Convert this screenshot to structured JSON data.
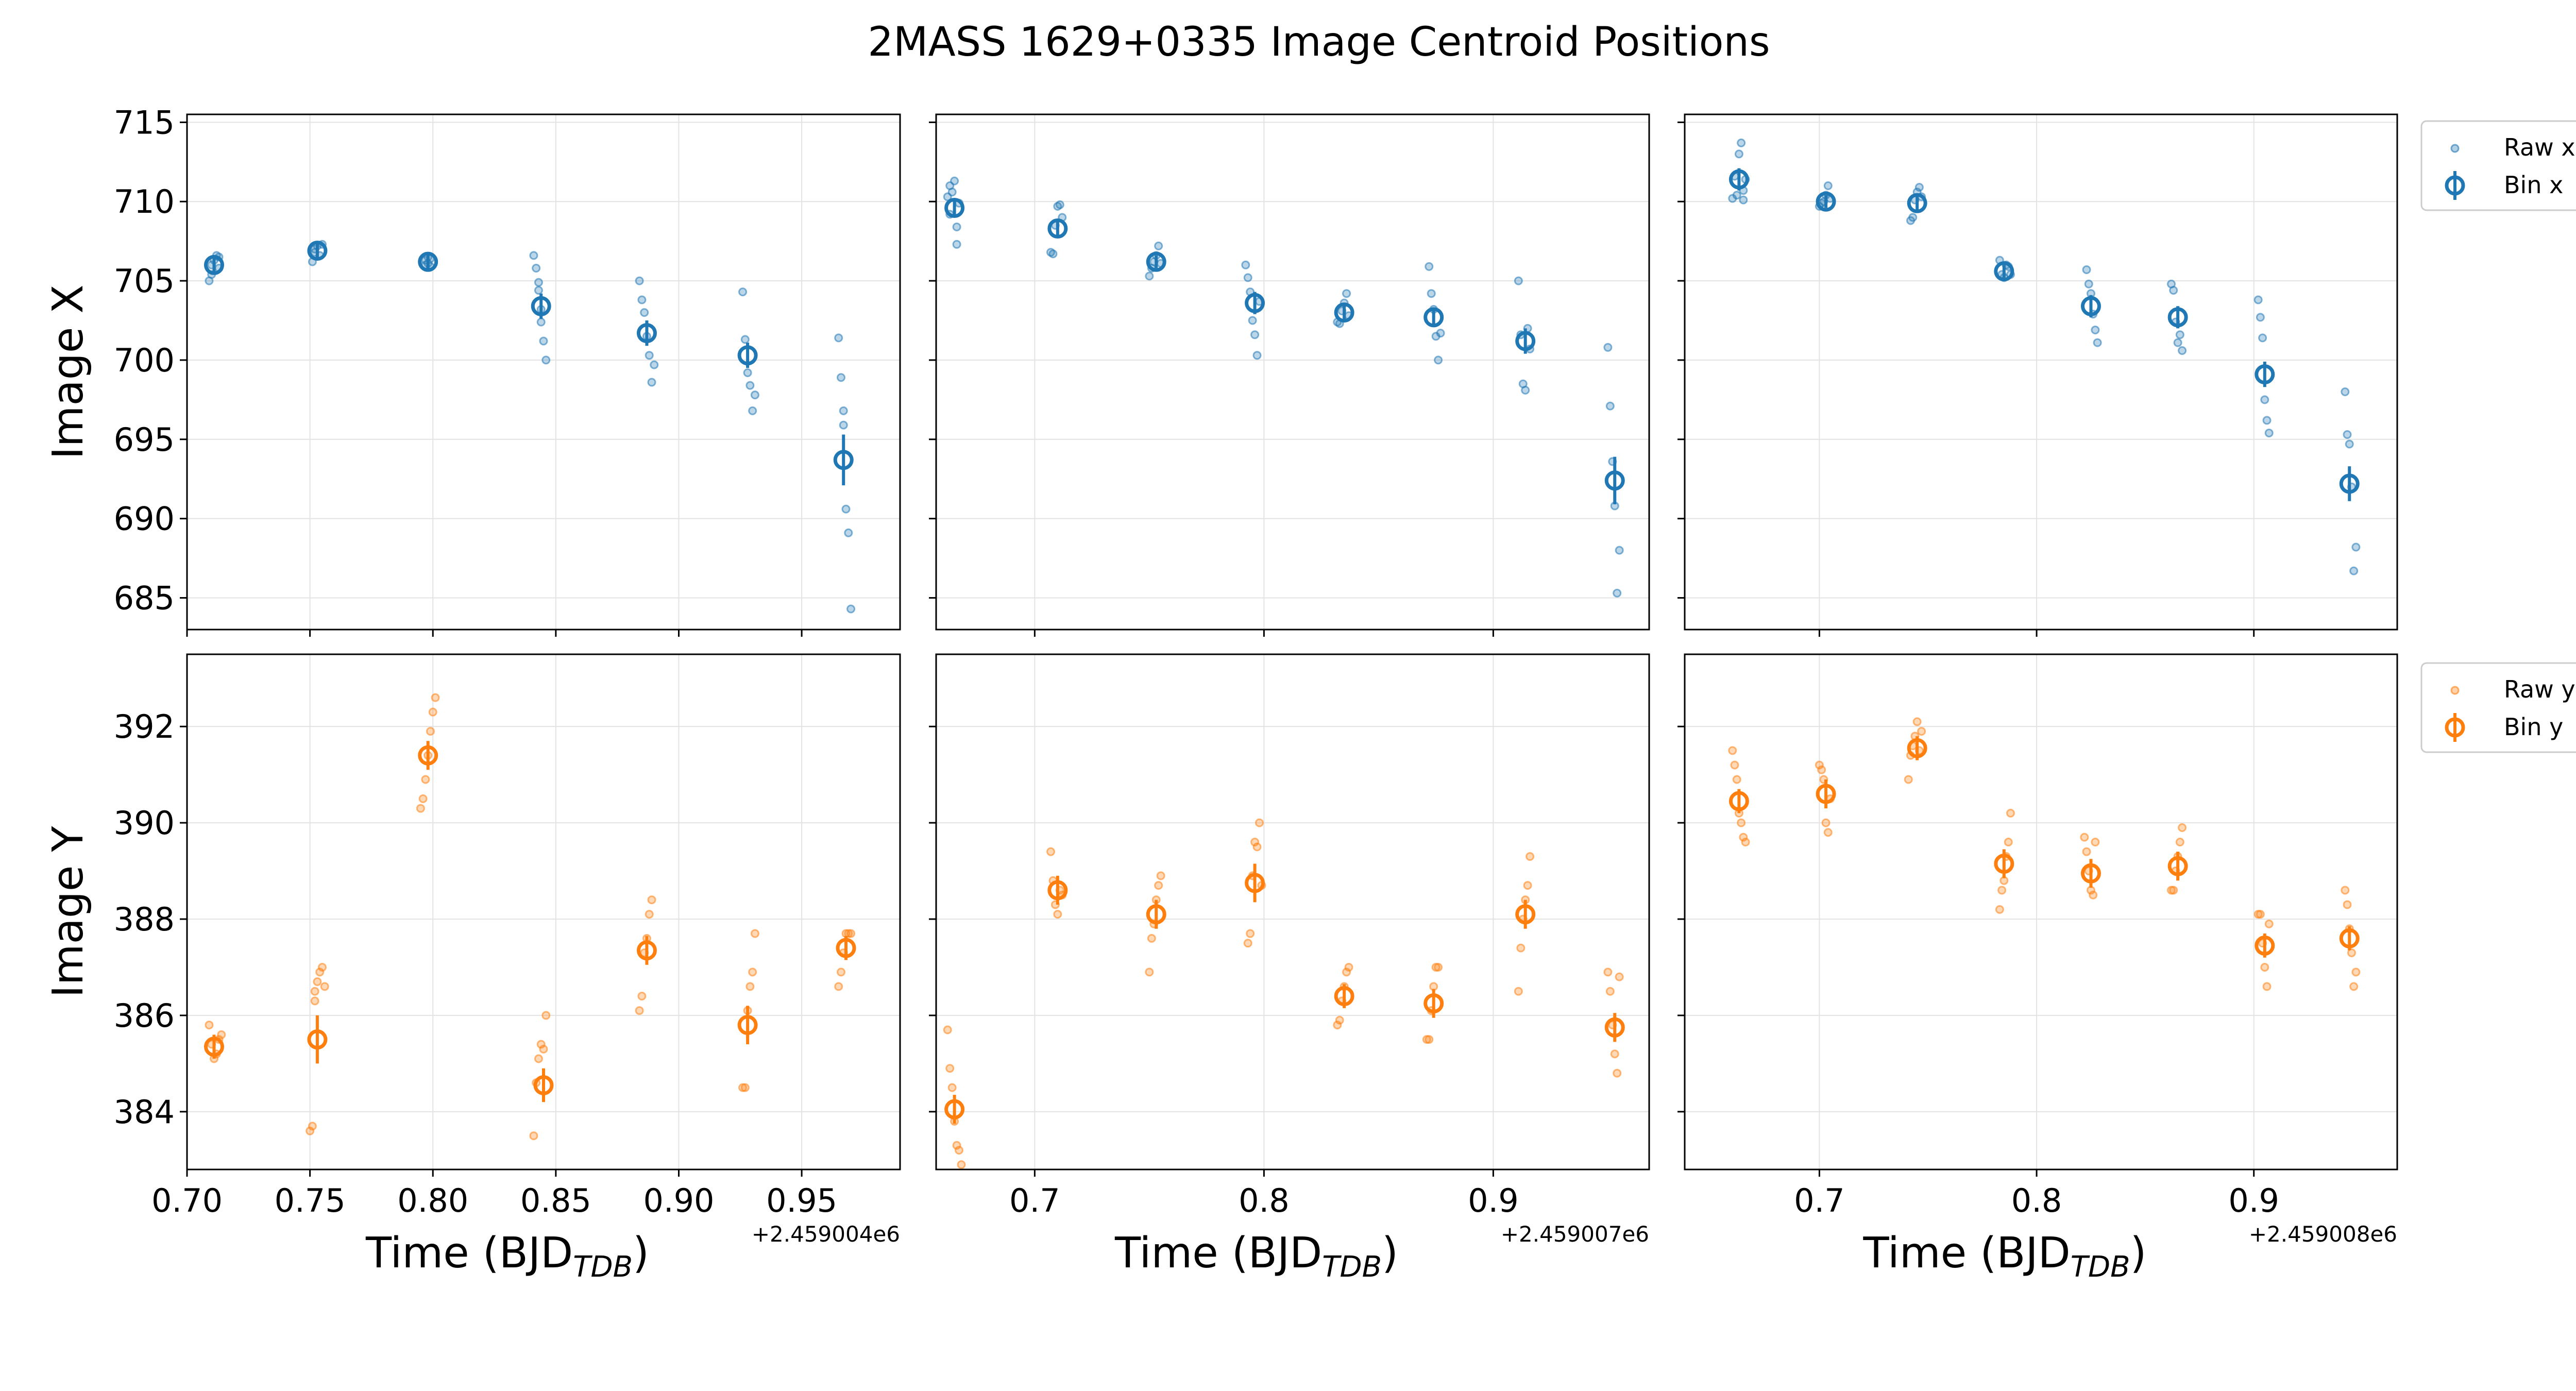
{
  "figure": {
    "title": "2MASS 1629+0335 Image Centroid Positions"
  },
  "legend": {
    "raw_x": "Raw x",
    "bin_x": "Bin x",
    "raw_y": "Raw y",
    "bin_y": "Bin y"
  },
  "colors": {
    "x_series": "#1f77b4",
    "y_series": "#ff7f0e"
  },
  "chart_data": [
    {
      "type": "scatter",
      "panel": "top-left",
      "ylabel": "Image X",
      "xlim": [
        0.7,
        0.99
      ],
      "ylim": [
        683,
        715.5
      ],
      "yticks": [
        685,
        690,
        695,
        700,
        705,
        710,
        715
      ],
      "ytick_labels": [
        "685",
        "690",
        "695",
        "700",
        "705",
        "710",
        "715"
      ],
      "xticks": [
        0.7,
        0.75,
        0.8,
        0.85,
        0.9,
        0.95
      ],
      "grid": true,
      "series": [
        {
          "name": "Raw x",
          "x": [
            0.709,
            0.71,
            0.71,
            0.711,
            0.712,
            0.713,
            0.713,
            0.751,
            0.752,
            0.752,
            0.753,
            0.754,
            0.755,
            0.797,
            0.797,
            0.798,
            0.798,
            0.799,
            0.799,
            0.841,
            0.842,
            0.843,
            0.843,
            0.844,
            0.844,
            0.845,
            0.846,
            0.884,
            0.885,
            0.886,
            0.887,
            0.888,
            0.889,
            0.89,
            0.926,
            0.927,
            0.928,
            0.929,
            0.93,
            0.931,
            0.965,
            0.966,
            0.967,
            0.967,
            0.968,
            0.969,
            0.97
          ],
          "y": [
            705.0,
            705.4,
            706.0,
            706.3,
            706.6,
            705.8,
            706.5,
            706.2,
            706.8,
            707.0,
            707.2,
            706.6,
            707.3,
            706.0,
            706.3,
            706.5,
            706.1,
            705.9,
            706.4,
            706.6,
            705.8,
            704.9,
            704.4,
            703.2,
            702.4,
            701.2,
            700.0,
            705.0,
            703.8,
            703.0,
            701.5,
            700.3,
            698.6,
            699.7,
            704.3,
            701.3,
            699.2,
            698.4,
            696.8,
            697.8,
            701.4,
            698.9,
            696.8,
            695.9,
            690.6,
            689.1,
            684.3
          ]
        },
        {
          "name": "Bin x",
          "x": [
            0.711,
            0.753,
            0.798,
            0.844,
            0.887,
            0.928,
            0.967
          ],
          "y": [
            706.0,
            706.9,
            706.2,
            703.4,
            701.7,
            700.3,
            693.7
          ],
          "err": [
            0.6,
            0.6,
            0.5,
            0.8,
            0.8,
            0.8,
            1.6
          ]
        }
      ]
    },
    {
      "type": "scatter",
      "panel": "top-middle",
      "ylabel": "",
      "xlim": [
        0.657,
        0.968
      ],
      "ylim": [
        683,
        715.5
      ],
      "yticks": [
        685,
        690,
        695,
        700,
        705,
        710,
        715
      ],
      "xticks": [
        0.7,
        0.8,
        0.9
      ],
      "grid": true,
      "series": [
        {
          "name": "Raw x",
          "x": [
            0.662,
            0.663,
            0.663,
            0.664,
            0.665,
            0.666,
            0.666,
            0.667,
            0.707,
            0.708,
            0.709,
            0.71,
            0.711,
            0.712,
            0.75,
            0.751,
            0.752,
            0.753,
            0.754,
            0.755,
            0.792,
            0.793,
            0.794,
            0.795,
            0.796,
            0.797,
            0.798,
            0.832,
            0.833,
            0.834,
            0.835,
            0.836,
            0.837,
            0.872,
            0.873,
            0.874,
            0.875,
            0.876,
            0.877,
            0.911,
            0.912,
            0.913,
            0.914,
            0.915,
            0.916,
            0.95,
            0.951,
            0.952,
            0.953,
            0.954,
            0.955
          ],
          "y": [
            710.3,
            711.0,
            709.2,
            710.6,
            711.3,
            708.4,
            707.3,
            709.9,
            706.8,
            706.7,
            708.5,
            709.7,
            709.8,
            709.0,
            705.3,
            705.8,
            706.2,
            706.6,
            707.2,
            706.1,
            706.0,
            705.2,
            704.3,
            702.5,
            701.6,
            700.3,
            703.7,
            702.4,
            702.3,
            703.1,
            703.6,
            704.2,
            702.8,
            705.9,
            704.2,
            703.2,
            701.5,
            700.0,
            701.7,
            705.0,
            701.6,
            698.5,
            698.1,
            702.0,
            700.7,
            700.8,
            697.1,
            693.6,
            690.8,
            685.3,
            688.0
          ]
        },
        {
          "name": "Bin x",
          "x": [
            0.665,
            0.71,
            0.753,
            0.796,
            0.835,
            0.874,
            0.914,
            0.953
          ],
          "y": [
            709.6,
            708.3,
            706.2,
            703.6,
            703.0,
            702.7,
            701.2,
            692.4
          ],
          "err": [
            0.6,
            0.5,
            0.4,
            0.7,
            0.5,
            0.6,
            0.8,
            1.5
          ]
        }
      ]
    },
    {
      "type": "scatter",
      "panel": "top-right",
      "ylabel": "",
      "xlim": [
        0.638,
        0.966
      ],
      "ylim": [
        683,
        715.5
      ],
      "yticks": [
        685,
        690,
        695,
        700,
        705,
        710,
        715
      ],
      "xticks": [
        0.7,
        0.8,
        0.9
      ],
      "grid": true,
      "series": [
        {
          "name": "Raw x",
          "x": [
            0.66,
            0.661,
            0.662,
            0.663,
            0.664,
            0.665,
            0.665,
            0.666,
            0.7,
            0.701,
            0.702,
            0.703,
            0.704,
            0.705,
            0.742,
            0.743,
            0.744,
            0.745,
            0.746,
            0.747,
            0.783,
            0.784,
            0.785,
            0.786,
            0.787,
            0.788,
            0.823,
            0.824,
            0.825,
            0.826,
            0.827,
            0.828,
            0.862,
            0.863,
            0.864,
            0.865,
            0.866,
            0.867,
            0.902,
            0.903,
            0.904,
            0.905,
            0.906,
            0.907,
            0.942,
            0.943,
            0.944,
            0.945,
            0.946,
            0.947
          ],
          "y": [
            710.2,
            711.6,
            710.4,
            713.0,
            713.7,
            710.7,
            710.1,
            711.4,
            709.7,
            709.9,
            710.0,
            710.4,
            711.0,
            710.2,
            708.8,
            709.0,
            710.1,
            710.6,
            710.9,
            710.3,
            706.3,
            705.4,
            705.2,
            706.0,
            705.9,
            705.4,
            705.7,
            704.8,
            704.2,
            702.9,
            701.9,
            701.1,
            704.8,
            704.4,
            702.4,
            701.1,
            701.6,
            700.6,
            703.8,
            702.7,
            701.4,
            697.5,
            696.2,
            695.4,
            698.0,
            695.3,
            694.7,
            692.0,
            686.7,
            688.2
          ]
        },
        {
          "name": "Bin x",
          "x": [
            0.663,
            0.703,
            0.745,
            0.785,
            0.825,
            0.865,
            0.905,
            0.944
          ],
          "y": [
            711.4,
            710.0,
            709.9,
            705.6,
            703.4,
            702.7,
            699.1,
            692.2
          ],
          "err": [
            0.7,
            0.4,
            0.5,
            0.4,
            0.7,
            0.7,
            0.8,
            1.1
          ]
        }
      ]
    },
    {
      "type": "scatter",
      "panel": "bottom-left",
      "ylabel": "Image Y",
      "xlabel": "Time (BJD_TDB)",
      "offset_label": "+2.459004e6",
      "xlim": [
        0.7,
        0.99
      ],
      "ylim": [
        382.8,
        393.5
      ],
      "yticks": [
        384,
        386,
        388,
        390,
        392
      ],
      "ytick_labels": [
        "384",
        "386",
        "388",
        "390",
        "392"
      ],
      "xticks": [
        0.7,
        0.75,
        0.8,
        0.85,
        0.9,
        0.95
      ],
      "xtick_labels": [
        "0.70",
        "0.75",
        "0.80",
        "0.85",
        "0.90",
        "0.95"
      ],
      "grid": true,
      "series": [
        {
          "name": "Raw y",
          "x": [
            0.709,
            0.71,
            0.711,
            0.712,
            0.713,
            0.714,
            0.75,
            0.751,
            0.752,
            0.752,
            0.753,
            0.754,
            0.755,
            0.756,
            0.795,
            0.796,
            0.797,
            0.798,
            0.799,
            0.8,
            0.801,
            0.841,
            0.842,
            0.843,
            0.844,
            0.845,
            0.846,
            0.884,
            0.885,
            0.886,
            0.887,
            0.888,
            0.889,
            0.926,
            0.927,
            0.928,
            0.929,
            0.93,
            0.931,
            0.965,
            0.966,
            0.967,
            0.968,
            0.969,
            0.97
          ],
          "y": [
            385.8,
            385.4,
            385.1,
            385.2,
            385.5,
            385.6,
            383.6,
            383.7,
            386.3,
            386.5,
            386.7,
            386.9,
            387.0,
            386.6,
            390.3,
            390.5,
            390.9,
            391.4,
            391.9,
            392.3,
            392.6,
            383.5,
            384.6,
            385.1,
            385.4,
            385.3,
            386.0,
            386.1,
            386.4,
            387.3,
            387.6,
            388.1,
            388.4,
            384.5,
            384.5,
            386.1,
            386.6,
            386.9,
            387.7,
            386.6,
            386.9,
            387.3,
            387.7,
            387.7,
            387.7
          ]
        },
        {
          "name": "Bin y",
          "x": [
            0.711,
            0.753,
            0.798,
            0.845,
            0.887,
            0.928,
            0.968
          ],
          "y": [
            385.35,
            385.5,
            391.4,
            384.55,
            387.35,
            385.8,
            387.4
          ],
          "err": [
            0.25,
            0.5,
            0.3,
            0.35,
            0.3,
            0.4,
            0.25
          ]
        }
      ]
    },
    {
      "type": "scatter",
      "panel": "bottom-middle",
      "ylabel": "",
      "xlabel": "Time (BJD_TDB)",
      "offset_label": "+2.459007e6",
      "xlim": [
        0.657,
        0.968
      ],
      "ylim": [
        382.8,
        393.5
      ],
      "yticks": [
        384,
        386,
        388,
        390,
        392
      ],
      "xticks": [
        0.7,
        0.8,
        0.9
      ],
      "xtick_labels": [
        "0.7",
        "0.8",
        "0.9"
      ],
      "grid": true,
      "series": [
        {
          "name": "Raw y",
          "x": [
            0.662,
            0.663,
            0.664,
            0.665,
            0.666,
            0.667,
            0.668,
            0.707,
            0.708,
            0.709,
            0.71,
            0.711,
            0.712,
            0.75,
            0.751,
            0.752,
            0.753,
            0.754,
            0.755,
            0.793,
            0.794,
            0.795,
            0.796,
            0.797,
            0.798,
            0.799,
            0.832,
            0.833,
            0.834,
            0.835,
            0.836,
            0.837,
            0.871,
            0.872,
            0.873,
            0.874,
            0.875,
            0.876,
            0.911,
            0.912,
            0.913,
            0.914,
            0.915,
            0.916,
            0.95,
            0.951,
            0.952,
            0.953,
            0.954,
            0.955
          ],
          "y": [
            385.7,
            384.9,
            384.5,
            383.8,
            383.3,
            383.2,
            382.9,
            389.4,
            388.8,
            388.3,
            388.1,
            388.6,
            388.5,
            386.9,
            387.6,
            387.9,
            388.4,
            388.7,
            388.9,
            387.5,
            387.7,
            388.9,
            389.6,
            389.5,
            390.0,
            388.7,
            385.8,
            385.9,
            386.3,
            386.6,
            386.9,
            387.0,
            385.5,
            385.5,
            386.1,
            386.6,
            387.0,
            387.0,
            386.5,
            387.4,
            388.0,
            388.4,
            388.7,
            389.3,
            386.9,
            386.5,
            385.8,
            385.2,
            384.8,
            386.8
          ]
        },
        {
          "name": "Bin y",
          "x": [
            0.665,
            0.71,
            0.753,
            0.796,
            0.835,
            0.874,
            0.914,
            0.953
          ],
          "y": [
            384.05,
            388.6,
            388.1,
            388.75,
            386.4,
            386.25,
            388.1,
            385.75
          ],
          "err": [
            0.3,
            0.3,
            0.3,
            0.4,
            0.25,
            0.3,
            0.3,
            0.3
          ]
        }
      ]
    },
    {
      "type": "scatter",
      "panel": "bottom-right",
      "ylabel": "",
      "xlabel": "Time (BJD_TDB)",
      "offset_label": "+2.459008e6",
      "xlim": [
        0.638,
        0.966
      ],
      "ylim": [
        382.8,
        393.5
      ],
      "yticks": [
        384,
        386,
        388,
        390,
        392
      ],
      "xticks": [
        0.7,
        0.8,
        0.9
      ],
      "xtick_labels": [
        "0.7",
        "0.8",
        "0.9"
      ],
      "grid": true,
      "series": [
        {
          "name": "Raw y",
          "x": [
            0.66,
            0.661,
            0.662,
            0.663,
            0.664,
            0.665,
            0.666,
            0.7,
            0.701,
            0.702,
            0.703,
            0.704,
            0.705,
            0.741,
            0.742,
            0.743,
            0.744,
            0.745,
            0.746,
            0.747,
            0.783,
            0.784,
            0.785,
            0.786,
            0.787,
            0.788,
            0.822,
            0.823,
            0.824,
            0.825,
            0.826,
            0.827,
            0.862,
            0.863,
            0.864,
            0.865,
            0.866,
            0.867,
            0.902,
            0.903,
            0.904,
            0.905,
            0.906,
            0.907,
            0.942,
            0.943,
            0.944,
            0.945,
            0.946,
            0.947
          ],
          "y": [
            391.5,
            391.2,
            390.9,
            390.2,
            390.0,
            389.7,
            389.6,
            391.2,
            391.1,
            390.9,
            390.0,
            389.8,
            390.5,
            390.9,
            391.4,
            391.6,
            391.8,
            392.1,
            391.5,
            391.9,
            388.2,
            388.6,
            388.8,
            389.3,
            389.6,
            390.2,
            389.7,
            389.4,
            389.0,
            388.6,
            388.5,
            389.6,
            388.6,
            388.6,
            389.0,
            389.3,
            389.6,
            389.9,
            388.1,
            388.1,
            387.5,
            387.0,
            386.6,
            387.9,
            388.6,
            388.3,
            387.8,
            387.3,
            386.6,
            386.9
          ]
        },
        {
          "name": "Bin y",
          "x": [
            0.663,
            0.703,
            0.745,
            0.785,
            0.825,
            0.865,
            0.905,
            0.944
          ],
          "y": [
            390.45,
            390.6,
            391.55,
            389.15,
            388.95,
            389.1,
            387.45,
            387.6
          ],
          "err": [
            0.25,
            0.3,
            0.25,
            0.3,
            0.3,
            0.3,
            0.25,
            0.25
          ]
        }
      ]
    }
  ]
}
